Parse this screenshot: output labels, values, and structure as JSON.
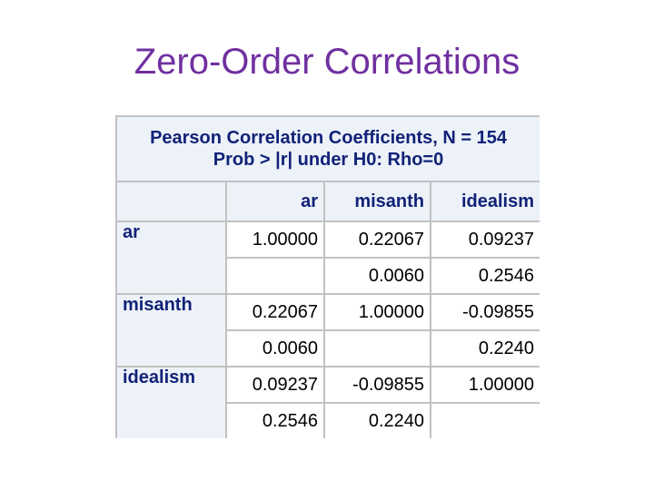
{
  "slide": {
    "title": "Zero-Order Correlations"
  },
  "table": {
    "caption_line1": "Pearson Correlation Coefficients, N = 154",
    "caption_line2": "Prob > |r| under H0: Rho=0",
    "columns": [
      "ar",
      "misanth",
      "idealism"
    ],
    "rows": [
      {
        "label": "ar",
        "r": [
          "1.00000",
          "0.22067",
          "0.09237"
        ],
        "p": [
          "",
          "0.0060",
          "0.2546"
        ]
      },
      {
        "label": "misanth",
        "r": [
          "0.22067",
          "1.00000",
          "-0.09855"
        ],
        "p": [
          "0.0060",
          "",
          "0.2240"
        ]
      },
      {
        "label": "idealism",
        "r": [
          "0.09237",
          "-0.09855",
          "1.00000"
        ],
        "p": [
          "0.2546",
          "0.2240",
          ""
        ]
      }
    ]
  },
  "colors": {
    "title": "#7030a0",
    "header_text": "#112277",
    "header_bg": "#edf2f9",
    "border": "#c1c1c1"
  }
}
